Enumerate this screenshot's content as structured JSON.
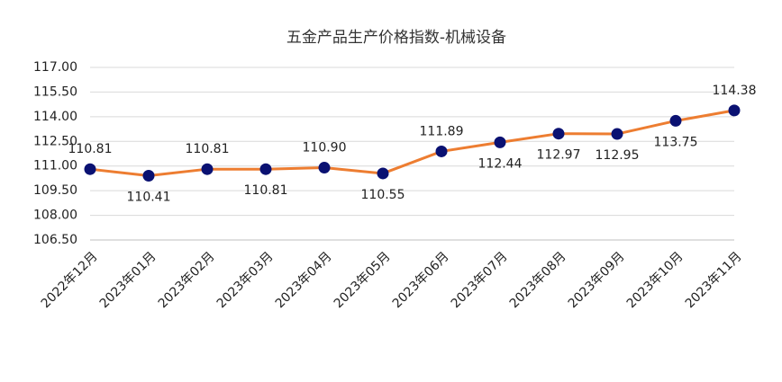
{
  "chart_data": {
    "type": "line",
    "title": "五金产品生产价格指数-机械设备",
    "categories": [
      "2022年12月",
      "2023年01月",
      "2023年02月",
      "2023年03月",
      "2023年04月",
      "2023年05月",
      "2023年06月",
      "2023年07月",
      "2023年08月",
      "2023年09月",
      "2023年10月",
      "2023年11月"
    ],
    "series": [
      {
        "name": "机械设备",
        "line_color": "#ed7d31",
        "marker_color": "#0a1172",
        "values": [
          110.81,
          110.41,
          110.81,
          110.81,
          110.9,
          110.55,
          111.89,
          112.44,
          112.97,
          112.95,
          113.75,
          114.38
        ],
        "value_labels": [
          "110.81",
          "110.41",
          "110.81",
          "110.81",
          "110.90",
          "110.55",
          "111.89",
          "112.44",
          "112.97",
          "112.95",
          "113.75",
          "114.38"
        ]
      }
    ],
    "ylim": [
      106.5,
      117
    ],
    "yticks": [
      {
        "value": 106.5,
        "label": "106.50"
      },
      {
        "value": 108,
        "label": "108.00"
      },
      {
        "value": 109.5,
        "label": "109.50"
      },
      {
        "value": 111,
        "label": "111.00"
      },
      {
        "value": 112.5,
        "label": "112.50"
      },
      {
        "value": 114,
        "label": "114.00"
      },
      {
        "value": 115.5,
        "label": "115.50"
      },
      {
        "value": 117,
        "label": "117.00"
      }
    ],
    "grid": true
  }
}
